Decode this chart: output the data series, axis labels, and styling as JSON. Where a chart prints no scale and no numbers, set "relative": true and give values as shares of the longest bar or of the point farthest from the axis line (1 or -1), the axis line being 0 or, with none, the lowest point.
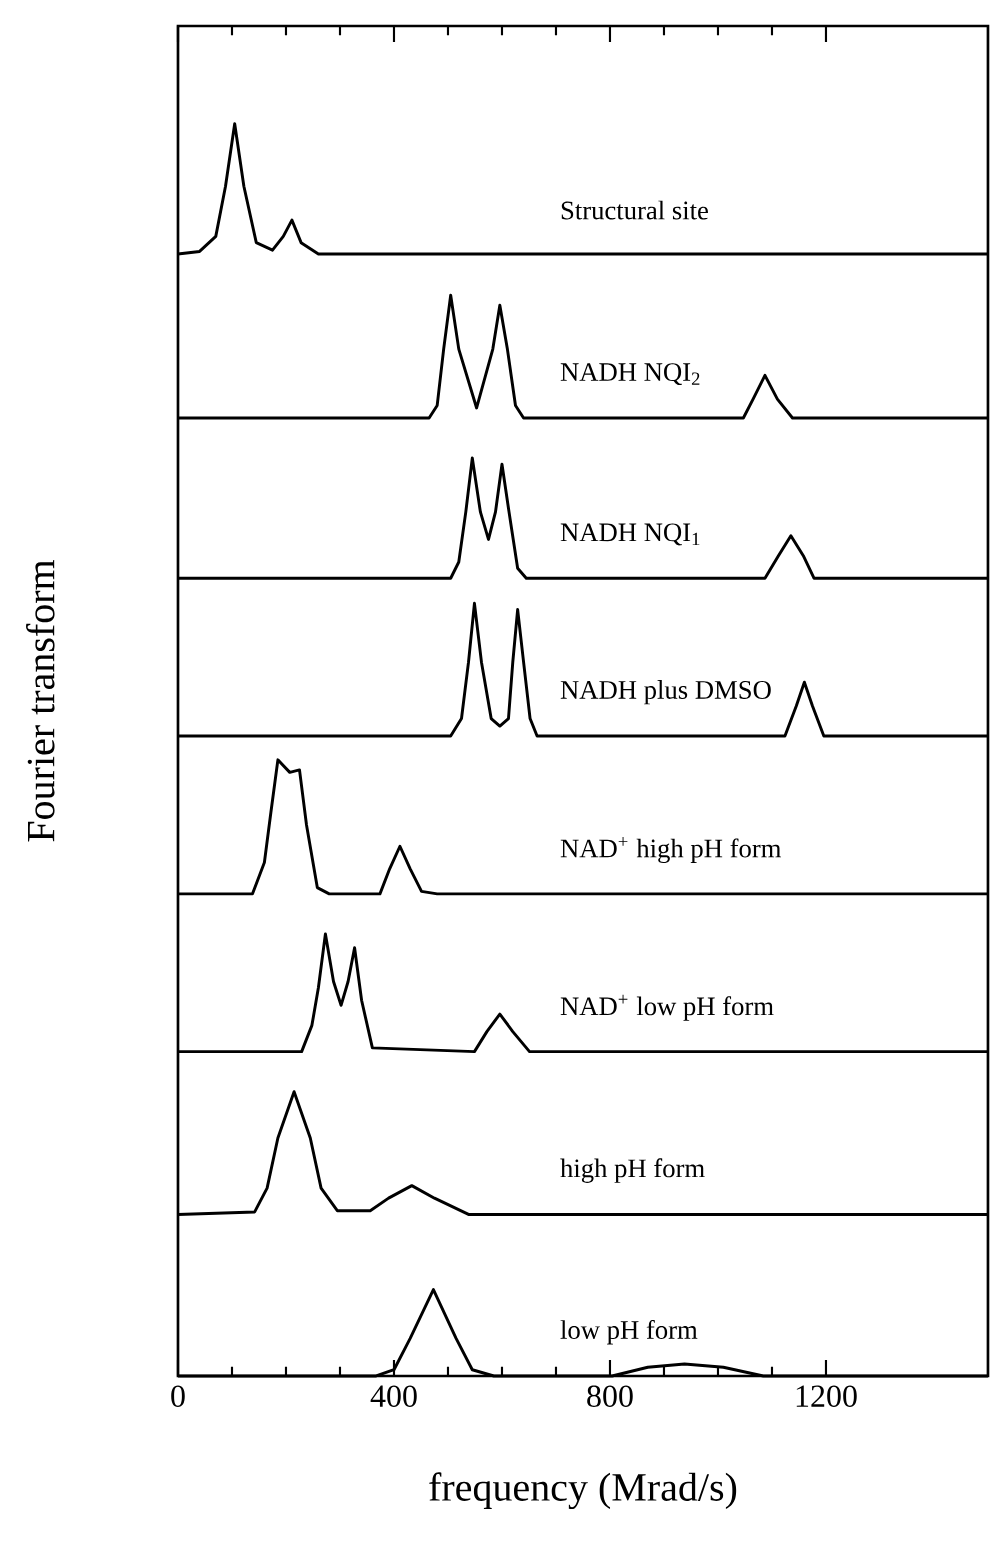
{
  "chart_data": {
    "type": "line",
    "relative": true,
    "xlabel": "frequency (Mrad/s)",
    "ylabel": "Fourier transform",
    "xlim": [
      0,
      1500
    ],
    "xticks": [
      0,
      400,
      800,
      1200
    ],
    "tick_labels": "x",
    "legend": false,
    "series": [
      {
        "name": "Structural site",
        "color": "#000000",
        "x": [
          0,
          40,
          70,
          88,
          105,
          122,
          145,
          175,
          195,
          211,
          228,
          260,
          1500
        ],
        "values": [
          0.896,
          0.898,
          0.91,
          0.95,
          1.0,
          0.95,
          0.905,
          0.899,
          0.91,
          0.923,
          0.905,
          0.896,
          0.896
        ]
      },
      {
        "name": "NADH NQI$_{2}$",
        "color": "#000000",
        "x": [
          0,
          465,
          480,
          492,
          505,
          520,
          553,
          583,
          596,
          610,
          625,
          640,
          1047,
          1065,
          1087,
          1110,
          1138,
          1500
        ],
        "values": [
          0.765,
          0.765,
          0.775,
          0.82,
          0.863,
          0.82,
          0.773,
          0.82,
          0.855,
          0.82,
          0.775,
          0.765,
          0.765,
          0.78,
          0.799,
          0.78,
          0.765,
          0.765
        ]
      },
      {
        "name": "NADH NQI$_{1}$",
        "color": "#000000",
        "x": [
          0,
          505,
          520,
          533,
          545,
          560,
          575,
          588,
          600,
          613,
          629,
          645,
          1087,
          1112,
          1135,
          1158,
          1178,
          1500
        ],
        "values": [
          0.637,
          0.637,
          0.65,
          0.69,
          0.733,
          0.69,
          0.668,
          0.69,
          0.728,
          0.69,
          0.645,
          0.637,
          0.637,
          0.655,
          0.671,
          0.655,
          0.637,
          0.637
        ]
      },
      {
        "name": "NADH plus DMSO",
        "color": "#000000",
        "x": [
          0,
          505,
          525,
          538,
          549,
          562,
          580,
          596,
          612,
          620,
          629,
          640,
          652,
          665,
          1124,
          1145,
          1160,
          1175,
          1196,
          1500
        ],
        "values": [
          0.511,
          0.511,
          0.525,
          0.57,
          0.617,
          0.57,
          0.525,
          0.519,
          0.525,
          0.57,
          0.612,
          0.57,
          0.525,
          0.511,
          0.511,
          0.535,
          0.554,
          0.535,
          0.511,
          0.511
        ]
      },
      {
        "name": "NAD$^{+}$ high pH form",
        "color": "#000000",
        "x": [
          0,
          138,
          160,
          172,
          185,
          207,
          225,
          238,
          258,
          280,
          374,
          392,
          411,
          430,
          451,
          480,
          1500
        ],
        "values": [
          0.385,
          0.385,
          0.41,
          0.45,
          0.492,
          0.482,
          0.484,
          0.44,
          0.39,
          0.385,
          0.385,
          0.405,
          0.423,
          0.405,
          0.387,
          0.385,
          0.385
        ]
      },
      {
        "name": "NAD$^{+}$ low pH form",
        "color": "#000000",
        "x": [
          0,
          229,
          248,
          260,
          273,
          288,
          302,
          315,
          327,
          340,
          360,
          549,
          572,
          596,
          620,
          651,
          1500
        ],
        "values": [
          0.259,
          0.259,
          0.28,
          0.31,
          0.353,
          0.315,
          0.296,
          0.315,
          0.342,
          0.3,
          0.262,
          0.259,
          0.275,
          0.289,
          0.275,
          0.259,
          0.259
        ]
      },
      {
        "name": "high pH form",
        "color": "#000000",
        "x": [
          0,
          142,
          165,
          185,
          215,
          245,
          265,
          295,
          356,
          390,
          433,
          475,
          538,
          1500
        ],
        "values": [
          0.129,
          0.131,
          0.15,
          0.19,
          0.227,
          0.19,
          0.15,
          0.132,
          0.132,
          0.142,
          0.152,
          0.142,
          0.129,
          0.129
        ]
      },
      {
        "name": "low pH form",
        "color": "#000000",
        "x": [
          0,
          367,
          400,
          430,
          473,
          515,
          545,
          585,
          804,
          870,
          938,
          1010,
          1084,
          1500
        ],
        "values": [
          0,
          0,
          0.005,
          0.03,
          0.069,
          0.03,
          0.005,
          0,
          0,
          0.007,
          0.0096,
          0.007,
          0,
          0
        ]
      }
    ]
  }
}
